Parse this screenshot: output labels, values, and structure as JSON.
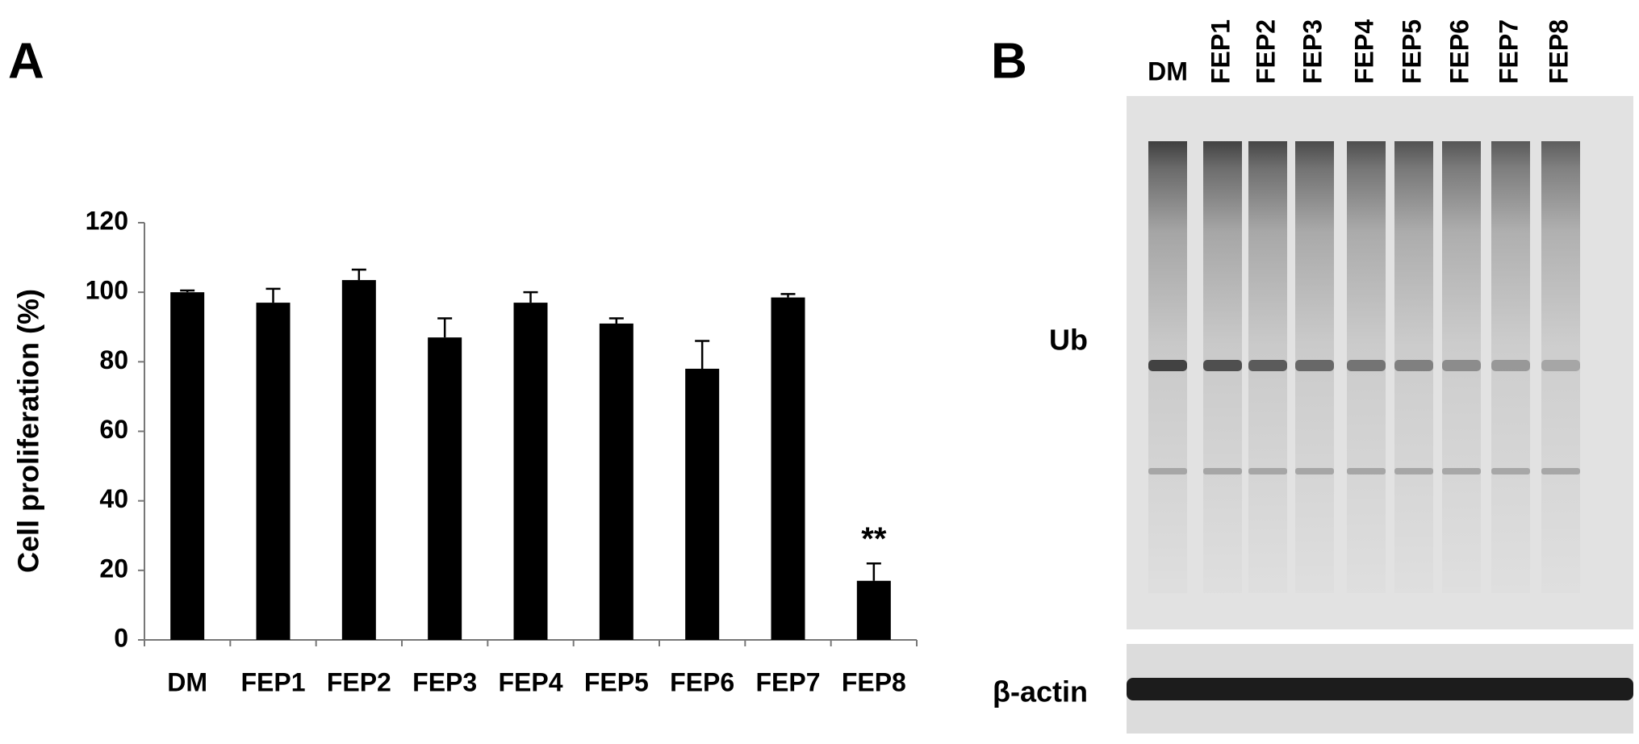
{
  "chart_data": {
    "type": "bar",
    "y_label": "Cell proliferation (%)",
    "categories": [
      "DM",
      "FEP1",
      "FEP2",
      "FEP3",
      "FEP4",
      "FEP5",
      "FEP6",
      "FEP7",
      "FEP8"
    ],
    "values": [
      100,
      97,
      103.5,
      87,
      97,
      91,
      78,
      98.5,
      17
    ],
    "errors": [
      0.5,
      4,
      3,
      5.5,
      3,
      1.5,
      8,
      1,
      5
    ],
    "color": "#000000",
    "ylim": [
      0,
      120
    ],
    "yticks": [
      0,
      20,
      40,
      60,
      80,
      100,
      120
    ],
    "annotations": [
      {
        "category_index": 8,
        "text": "**"
      }
    ]
  },
  "panel_labels": [
    "A",
    "B"
  ],
  "blot": {
    "lanes": [
      "DM",
      "FEP1",
      "FEP2",
      "FEP3",
      "FEP4",
      "FEP5",
      "FEP6",
      "FEP7",
      "FEP8"
    ],
    "rows": [
      "Ub",
      "β-actin"
    ]
  }
}
